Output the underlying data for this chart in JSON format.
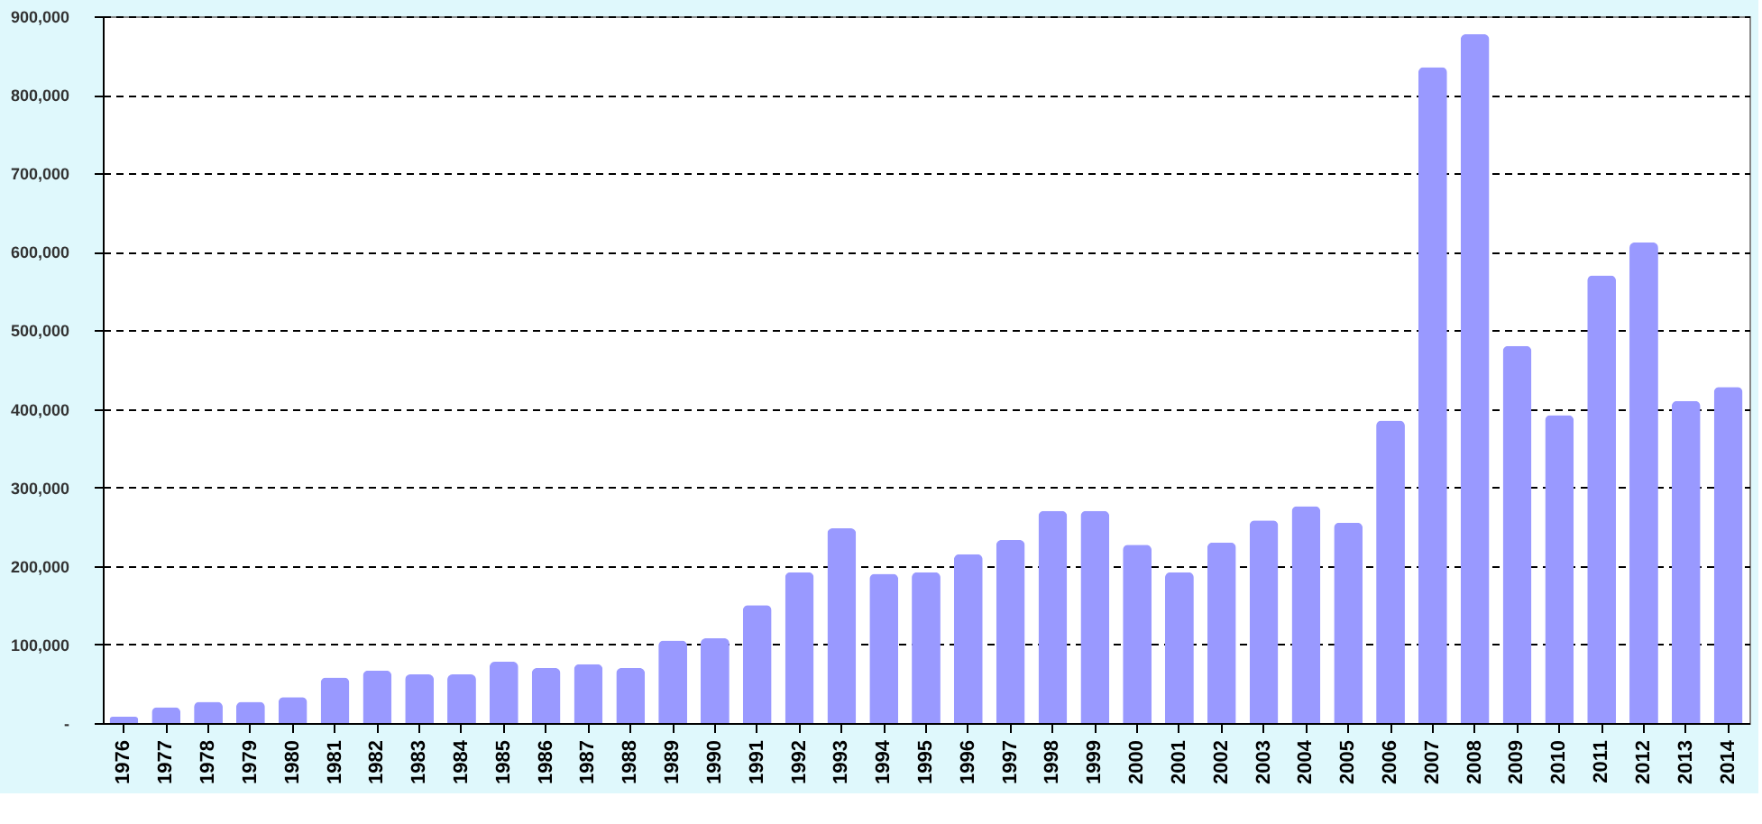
{
  "chart_data": {
    "type": "bar",
    "categories": [
      "1976",
      "1977",
      "1978",
      "1979",
      "1980",
      "1981",
      "1982",
      "1983",
      "1984",
      "1985",
      "1986",
      "1987",
      "1988",
      "1989",
      "1990",
      "1991",
      "1992",
      "1993",
      "1994",
      "1995",
      "1996",
      "1997",
      "1998",
      "1999",
      "2000",
      "2001",
      "2002",
      "2003",
      "2004",
      "2005",
      "2006",
      "2007",
      "2008",
      "2009",
      "2010",
      "2011",
      "2012",
      "2013",
      "2014"
    ],
    "values": [
      8000,
      20000,
      27000,
      27000,
      33000,
      58000,
      67000,
      62000,
      62000,
      78000,
      70000,
      75000,
      70000,
      105000,
      108000,
      150000,
      192000,
      248000,
      190000,
      192000,
      215000,
      233000,
      270000,
      270000,
      227000,
      192000,
      230000,
      258000,
      276000,
      255000,
      385000,
      835000,
      877000,
      480000,
      392000,
      570000,
      612000,
      410000,
      428000
    ],
    "color": "#9999ff",
    "ylim": [
      0,
      900000
    ],
    "yticks": [
      {
        "value": 0,
        "label": "-"
      },
      {
        "value": 100000,
        "label": "100,000"
      },
      {
        "value": 200000,
        "label": "200,000"
      },
      {
        "value": 300000,
        "label": "300,000"
      },
      {
        "value": 400000,
        "label": "400,000"
      },
      {
        "value": 500000,
        "label": "500,000"
      },
      {
        "value": 600000,
        "label": "600,000"
      },
      {
        "value": 700000,
        "label": "700,000"
      },
      {
        "value": 800000,
        "label": "800,000"
      },
      {
        "value": 900000,
        "label": "900,000"
      }
    ],
    "grid": "y"
  }
}
